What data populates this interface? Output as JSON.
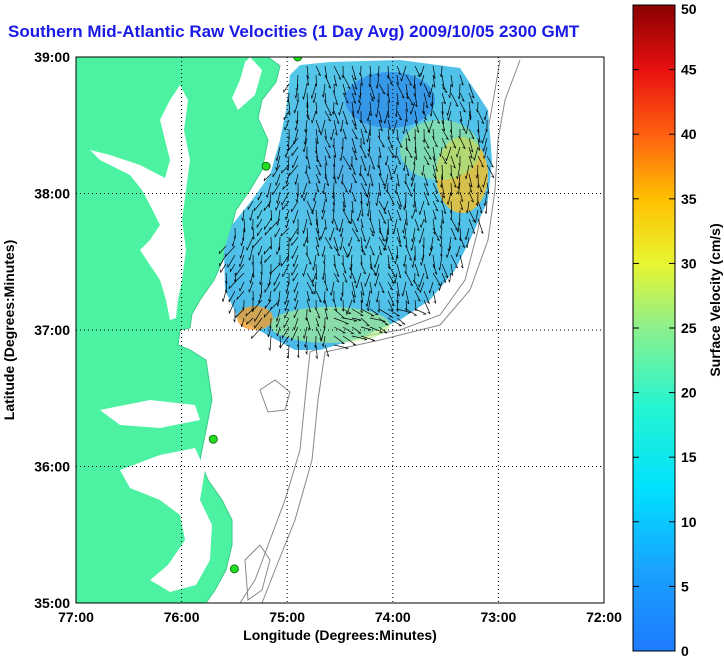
{
  "title": "Southern Mid-Atlantic Raw Velocities (1 Day Avg) 2009/10/05 2300 GMT",
  "chart_data": {
    "type": "map",
    "xlabel": "Longitude (Degrees:Minutes)",
    "ylabel": "Latitude (Degrees:Minutes)",
    "x_ticks": [
      "77:00",
      "76:00",
      "75:00",
      "74:00",
      "73:00",
      "72:00"
    ],
    "x_values": [
      -77,
      -76,
      -75,
      -74,
      -73,
      -72
    ],
    "y_ticks": [
      "35:00",
      "36:00",
      "37:00",
      "38:00",
      "39:00"
    ],
    "y_values": [
      35,
      36,
      37,
      38,
      39
    ],
    "xlim": [
      -77,
      -72
    ],
    "ylim": [
      35,
      39
    ],
    "grid": true,
    "colorbar": {
      "label": "Surface Velocity (cm/s)",
      "ticks": [
        "0",
        "5",
        "10",
        "15",
        "20",
        "25",
        "30",
        "35",
        "40",
        "45",
        "50"
      ],
      "range": [
        0,
        50
      ],
      "colormap": "jet"
    },
    "colors": {
      "land": "#4cf2a2",
      "title": "#1a1ae6",
      "station": "#22dd22",
      "grid": "#000000",
      "arrows": "#000000"
    },
    "stations": [
      {
        "lon": -74.9,
        "lat": 39.0
      },
      {
        "lon": -75.2,
        "lat": 38.2
      },
      {
        "lon": -75.7,
        "lat": 36.2
      },
      {
        "lon": -75.5,
        "lat": 35.25
      }
    ]
  }
}
